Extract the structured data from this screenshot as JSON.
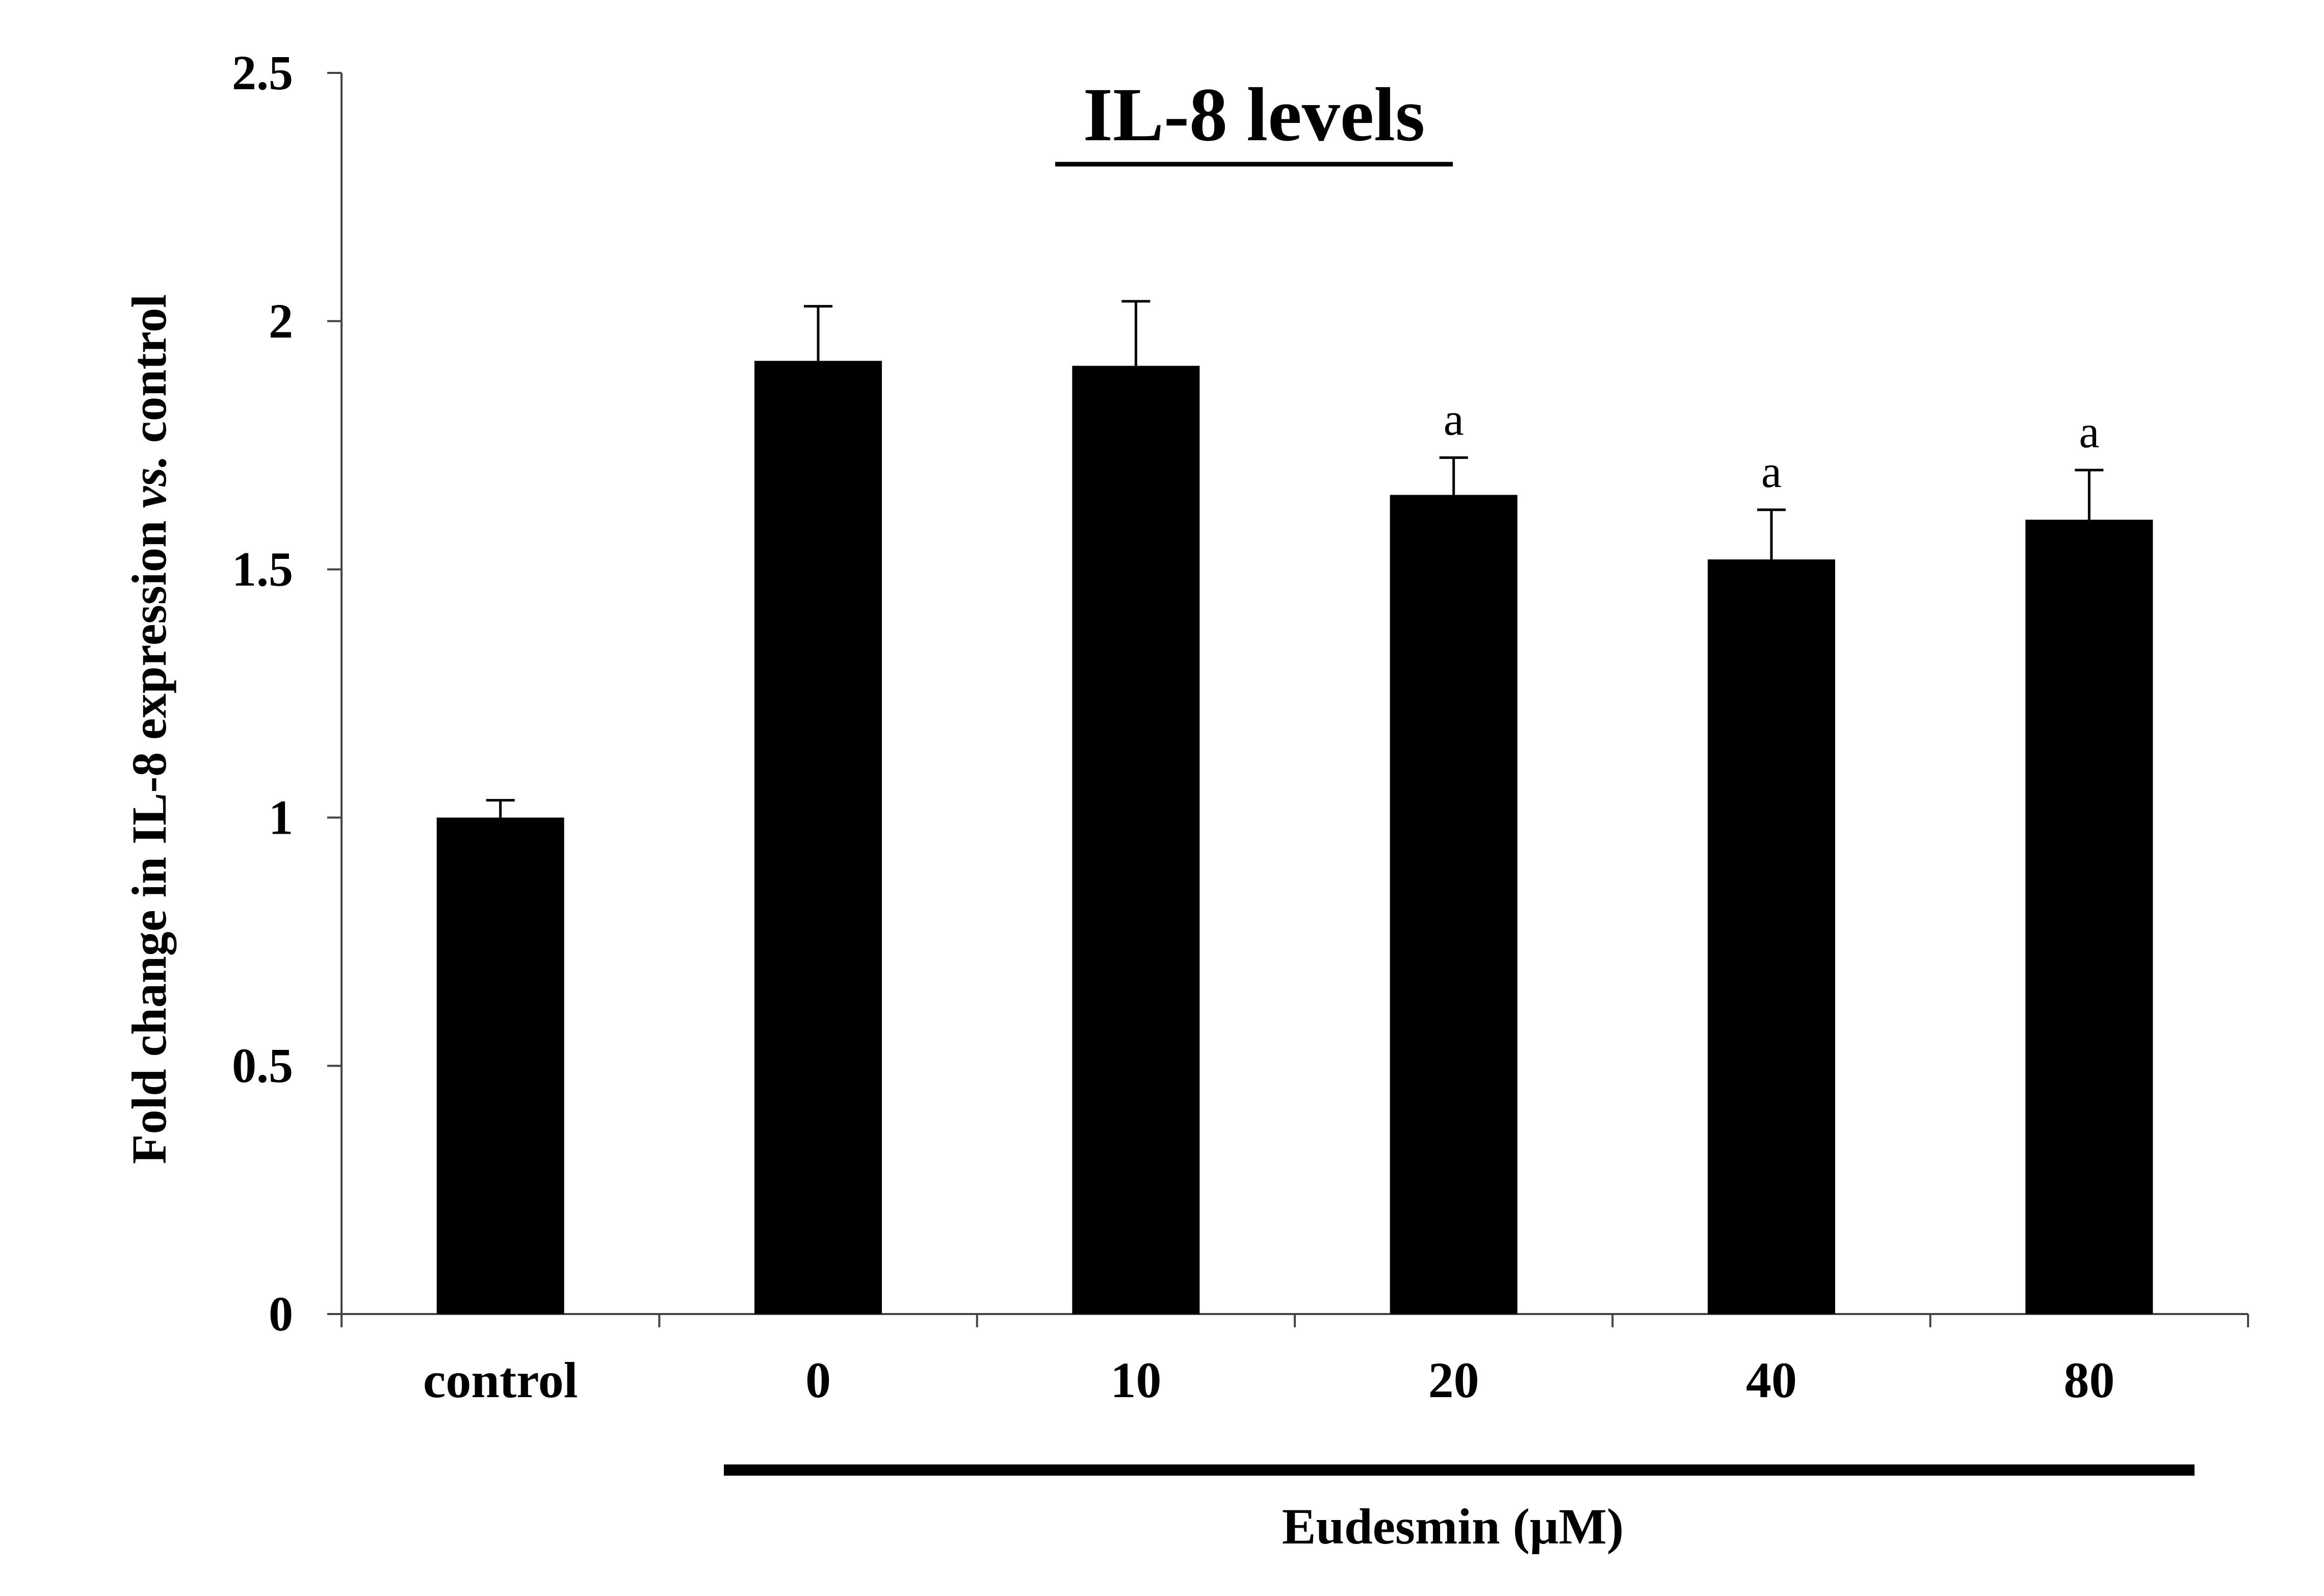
{
  "chart_data": {
    "type": "bar",
    "title": "IL-8 levels",
    "ylabel_parts": [
      "Fold change in IL-8 expression ",
      "vs.",
      " control"
    ],
    "xlabel": "Eudesmin (μM)",
    "categories": [
      "control",
      "0",
      "10",
      "20",
      "40",
      "80"
    ],
    "values": [
      1.0,
      1.92,
      1.91,
      1.65,
      1.52,
      1.6
    ],
    "errors": [
      0.035,
      0.11,
      0.13,
      0.075,
      0.1,
      0.1
    ],
    "annotations": [
      "",
      "",
      "",
      "a",
      "a",
      "a"
    ],
    "ylim": [
      0,
      2.5
    ],
    "yticks": [
      "0",
      "0.5",
      "1",
      "1.5",
      "2",
      "2.5"
    ],
    "grid": false,
    "legend": "none",
    "bar_color": "#000000"
  }
}
